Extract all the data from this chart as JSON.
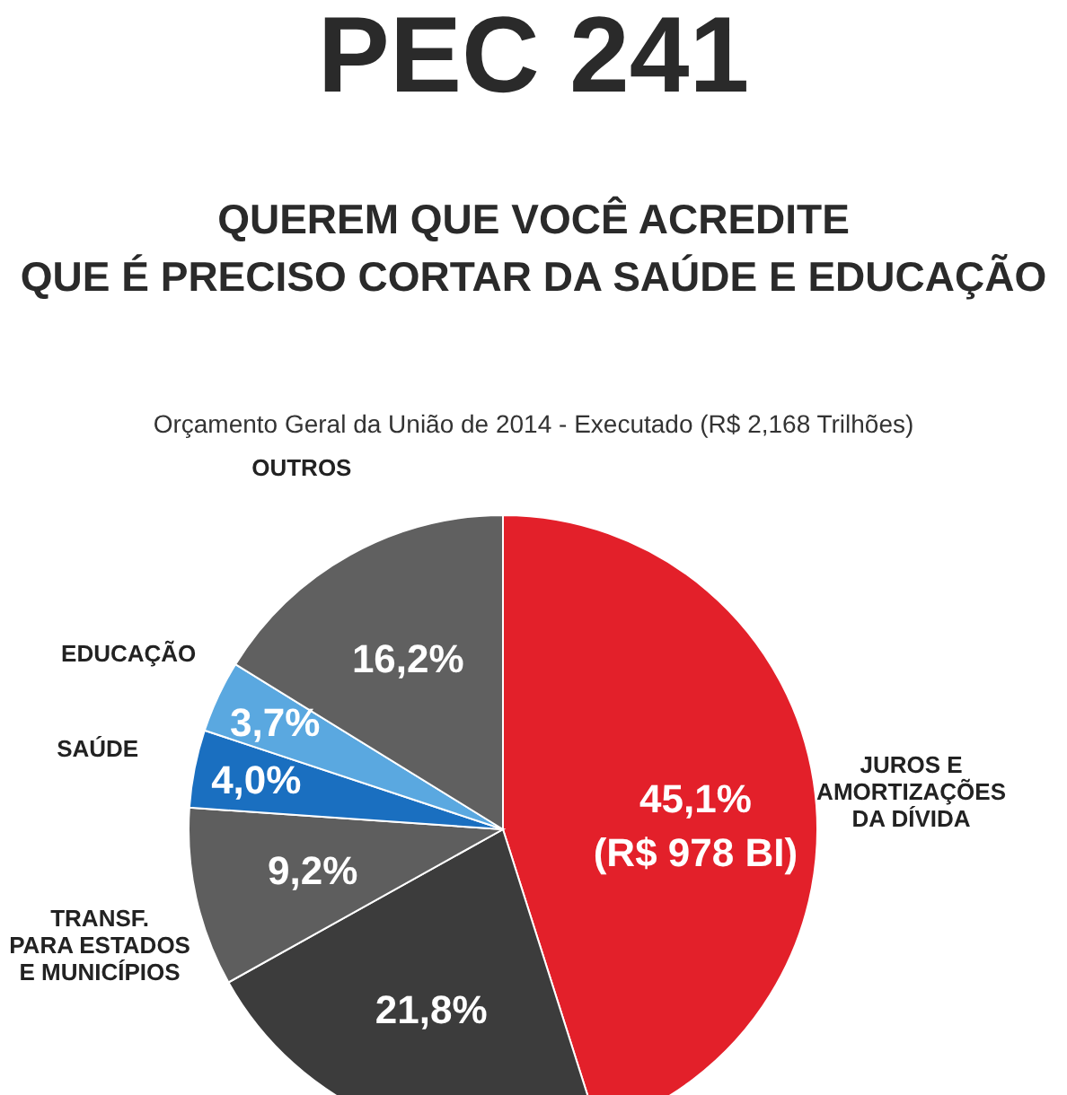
{
  "chart_data": {
    "type": "pie",
    "title": "PEC 241",
    "subtitle": "QUEREM QUE VOCÊ ACREDITE\nQUE É PRECISO CORTAR DA SAÚDE E EDUCAÇÃO",
    "annotations": [
      "Orçamento Geral da União de 2014 - Executado (R$ 2,168 Trilhões)"
    ],
    "categories": [
      "JUROS E\nAMORTIZAÇÕES\nDA DÍVIDA",
      null,
      "TRANSF.\nPARA ESTADOS\nE MUNICÍPIOS",
      "SAÚDE",
      "EDUCAÇÃO",
      "OUTROS"
    ],
    "values": [
      45.1,
      21.8,
      9.2,
      4.0,
      3.7,
      16.2
    ],
    "colors": [
      "#e3202a",
      "#3c3c3c",
      "#5e5e5e",
      "#1a6fc0",
      "#5aa8e0",
      "#606060"
    ],
    "value_labels": [
      "45,1%\n(R$ 978 BI)",
      "21,8%",
      "9,2%",
      "4,0%",
      "3,7%",
      "16,2%"
    ]
  }
}
